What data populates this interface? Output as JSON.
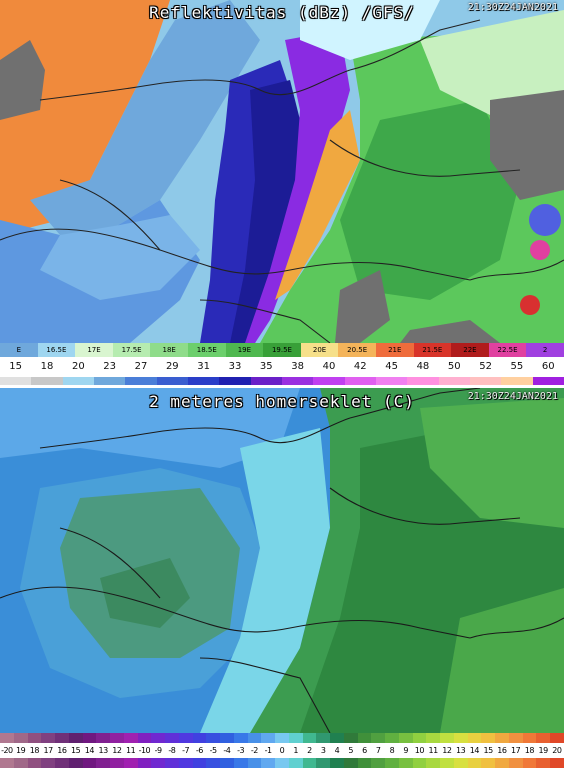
{
  "reflectivity_panel": {
    "title": "Reflektivitas (dBz) /GFS/",
    "timestamp": "21:30Z24JAN2021",
    "longitude_labels": [
      "E",
      "16.5E",
      "17E",
      "17.5E",
      "18E",
      "18.5E",
      "19E",
      "19.5E",
      "20E",
      "20.5E",
      "21E",
      "21.5E",
      "22E",
      "22.5E",
      "2"
    ],
    "longitude_colors": [
      "#6fa8dc",
      "#9fd6f0",
      "#d9f5d0",
      "#b6ecb0",
      "#8fdc8a",
      "#6ccf6c",
      "#4fb84f",
      "#38a038",
      "#f6e08a",
      "#f4b45a",
      "#ef6c3c",
      "#d8342a",
      "#b01c1c",
      "#e040a0",
      "#a040e0"
    ],
    "dbz_labels": [
      "15",
      "18",
      "20",
      "23",
      "27",
      "29",
      "31",
      "33",
      "35",
      "38",
      "40",
      "42",
      "45",
      "48",
      "50",
      "52",
      "55",
      "60"
    ],
    "dbz_colors": [
      "#e0e0e0",
      "#c8c8c8",
      "#9fd6f0",
      "#6fa8dc",
      "#4a7ed8",
      "#3a5ed0",
      "#2a3ec8",
      "#2020b0",
      "#6a20c8",
      "#9a30e0",
      "#c040f0",
      "#e060f0",
      "#f080f0",
      "#ff90e0",
      "#ffb0d0",
      "#ffc0c0",
      "#ffd0a0",
      "#a020e0"
    ]
  },
  "temperature_panel": {
    "title": "2 meteres homerseklet (C)",
    "timestamp": "21:30Z24JAN2021",
    "temp_labels": [
      "-20",
      "19",
      "18",
      "17",
      "16",
      "15",
      "14",
      "13",
      "12",
      "11",
      "-10",
      "-9",
      "-8",
      "-7",
      "-6",
      "-5",
      "-4",
      "-3",
      "-2",
      "-1",
      "0",
      "1",
      "2",
      "3",
      "4",
      "5",
      "6",
      "7",
      "8",
      "9",
      "10",
      "11",
      "12",
      "13",
      "14",
      "15",
      "16",
      "17",
      "18",
      "19",
      "20"
    ],
    "temp_colors": [
      "#b07890",
      "#a06888",
      "#905080",
      "#804080",
      "#703078",
      "#602070",
      "#701880",
      "#802090",
      "#9020a0",
      "#a020b0",
      "#8020c0",
      "#7028d0",
      "#6030d8",
      "#5038e0",
      "#4040e0",
      "#3850e0",
      "#3060e0",
      "#3878e8",
      "#4890e8",
      "#60a8f0",
      "#78c8f0",
      "#60d0d0",
      "#40b890",
      "#309870",
      "#208050",
      "#307a3a",
      "#40903a",
      "#50a040",
      "#60b040",
      "#78c040",
      "#90d040",
      "#a8d840",
      "#c0e040",
      "#d8e040",
      "#e8d040",
      "#f0c040",
      "#f0a840",
      "#f09040",
      "#f07838",
      "#e86030",
      "#e04828"
    ]
  }
}
